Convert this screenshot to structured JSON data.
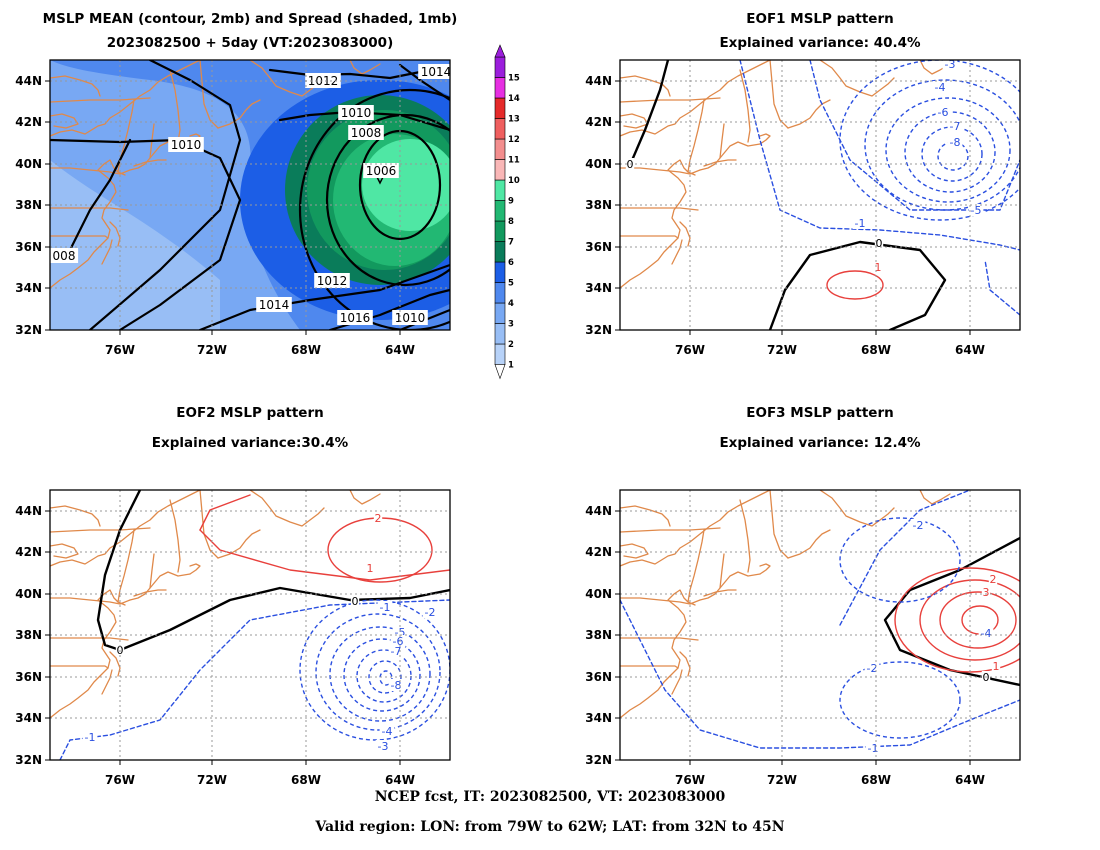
{
  "panels": {
    "mean": {
      "title1": "MSLP MEAN (contour, 2mb) and Spread (shaded, 1mb)",
      "title2": "2023082500 + 5day (VT:2023083000)"
    },
    "eof1": {
      "title1": "EOF1 MSLP pattern",
      "title2": "Explained variance: 40.4%"
    },
    "eof2": {
      "title1": "EOF2 MSLP pattern",
      "title2": "Explained variance:30.4%"
    },
    "eof3": {
      "title1": "EOF3 MSLP pattern",
      "title2": "Explained variance: 12.4%"
    }
  },
  "footer": {
    "line1": "NCEP fcst, IT: 2023082500, VT: 2023083000",
    "line2": "Valid region: LON: from 79W to 62W; LAT: from 32N to 45N"
  },
  "colors": {
    "coast": "#e0894a",
    "grid": "#999999",
    "contour": "#000000",
    "eof_pos": "#e8403c",
    "eof_neg": "#2a4fe0"
  },
  "chart_data": [
    {
      "type": "heatmap",
      "name": "mean",
      "title": "MSLP MEAN (contour, 2mb) and Spread (shaded, 1mb)",
      "subtitle": "2023082500 + 5day (VT:2023083000)",
      "xlim": [
        -79,
        -62
      ],
      "ylim": [
        32,
        45
      ],
      "x_ticks": [
        "76W",
        "72W",
        "68W",
        "64W"
      ],
      "y_ticks": [
        "32N",
        "34N",
        "36N",
        "38N",
        "40N",
        "42N",
        "44N"
      ],
      "colorbar": {
        "levels": [
          "1",
          "2",
          "3",
          "4",
          "5",
          "6",
          "7",
          "8",
          "9",
          "10",
          "11",
          "12",
          "13",
          "14",
          "15"
        ],
        "colors": [
          "#b7d2f8",
          "#98bef5",
          "#78a8f3",
          "#4f88ee",
          "#1c5ee6",
          "#0a7c5a",
          "#12995e",
          "#22b873",
          "#4fe7a4",
          "#f9b7b7",
          "#f38e8e",
          "#ef5f5f",
          "#e52a2a",
          "#e62fe2",
          "#9b1edc"
        ]
      },
      "contour_labels": [
        "1012",
        "1014",
        "1010",
        "1008",
        "1006",
        "1010",
        "1012",
        "1014",
        "1016",
        "1010",
        "008"
      ],
      "low_center": {
        "lon": -65,
        "lat": 39.2,
        "value": 1006
      }
    },
    {
      "type": "heatmap",
      "name": "eof1",
      "title": "EOF1 MSLP pattern",
      "subtitle": "Explained variance: 40.4%",
      "explained_variance": 40.4,
      "xlim": [
        -79,
        -62
      ],
      "ylim": [
        32,
        45
      ],
      "x_ticks": [
        "76W",
        "72W",
        "68W",
        "64W"
      ],
      "y_ticks": [
        "32N",
        "34N",
        "36N",
        "38N",
        "40N",
        "42N",
        "44N"
      ],
      "contour_labels": [
        "-3",
        "-4",
        "-6",
        "-7",
        "-8",
        "-5",
        "-1",
        "0",
        "1",
        "0"
      ]
    },
    {
      "type": "heatmap",
      "name": "eof2",
      "title": "EOF2 MSLP pattern",
      "subtitle": "Explained variance:30.4%",
      "explained_variance": 30.4,
      "xlim": [
        -79,
        -62
      ],
      "ylim": [
        32,
        45
      ],
      "x_ticks": [
        "76W",
        "72W",
        "68W",
        "64W"
      ],
      "y_ticks": [
        "32N",
        "34N",
        "36N",
        "38N",
        "40N",
        "42N",
        "44N"
      ],
      "contour_labels": [
        "2",
        "1",
        "0",
        "0",
        "-1",
        "-2",
        "-5",
        "-6",
        "-7",
        "-8",
        "-4",
        "-3",
        "-1"
      ]
    },
    {
      "type": "heatmap",
      "name": "eof3",
      "title": "EOF3 MSLP pattern",
      "subtitle": "Explained variance: 12.4%",
      "explained_variance": 12.4,
      "xlim": [
        -79,
        -62
      ],
      "ylim": [
        32,
        45
      ],
      "x_ticks": [
        "76W",
        "72W",
        "68W",
        "64W"
      ],
      "y_ticks": [
        "32N",
        "34N",
        "36N",
        "38N",
        "40N",
        "42N",
        "44N"
      ],
      "contour_labels": [
        "-2",
        "2",
        "3",
        "-4",
        "1",
        "0",
        "-2",
        "-1"
      ]
    }
  ]
}
